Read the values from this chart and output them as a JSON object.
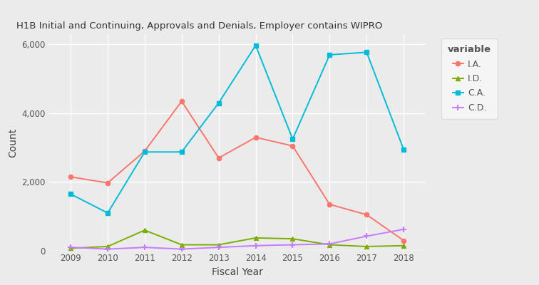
{
  "years": [
    2009,
    2010,
    2011,
    2012,
    2013,
    2014,
    2015,
    2016,
    2017,
    2018
  ],
  "IA": [
    2150,
    1975,
    2900,
    4350,
    2700,
    3300,
    3050,
    1350,
    1050,
    300
  ],
  "ID": [
    75,
    125,
    600,
    175,
    175,
    375,
    350,
    175,
    125,
    150
  ],
  "CA": [
    1650,
    1100,
    2875,
    2875,
    4300,
    5975,
    3250,
    5700,
    5775,
    2950
  ],
  "CD": [
    100,
    50,
    100,
    50,
    100,
    150,
    175,
    200,
    425,
    625
  ],
  "title": "H1B Initial and Continuing, Approvals and Denials, Employer contains WIPRO",
  "xlabel": "Fiscal Year",
  "ylabel": "Count",
  "legend_title": "variable",
  "legend_labels": [
    "I.A.",
    "I.D.",
    "C.A.",
    "C.D."
  ],
  "colors": {
    "IA": "#F8766D",
    "ID": "#7CAE00",
    "CA": "#00BCD8",
    "CD": "#C77CFF"
  },
  "plot_bg_color": "#EBEBEB",
  "fig_bg_color": "#EBEBEB",
  "legend_bg_color": "#F5F5F5",
  "grid_color": "#FFFFFF",
  "ylim": [
    0,
    6300
  ],
  "yticks": [
    0,
    2000,
    4000,
    6000
  ]
}
